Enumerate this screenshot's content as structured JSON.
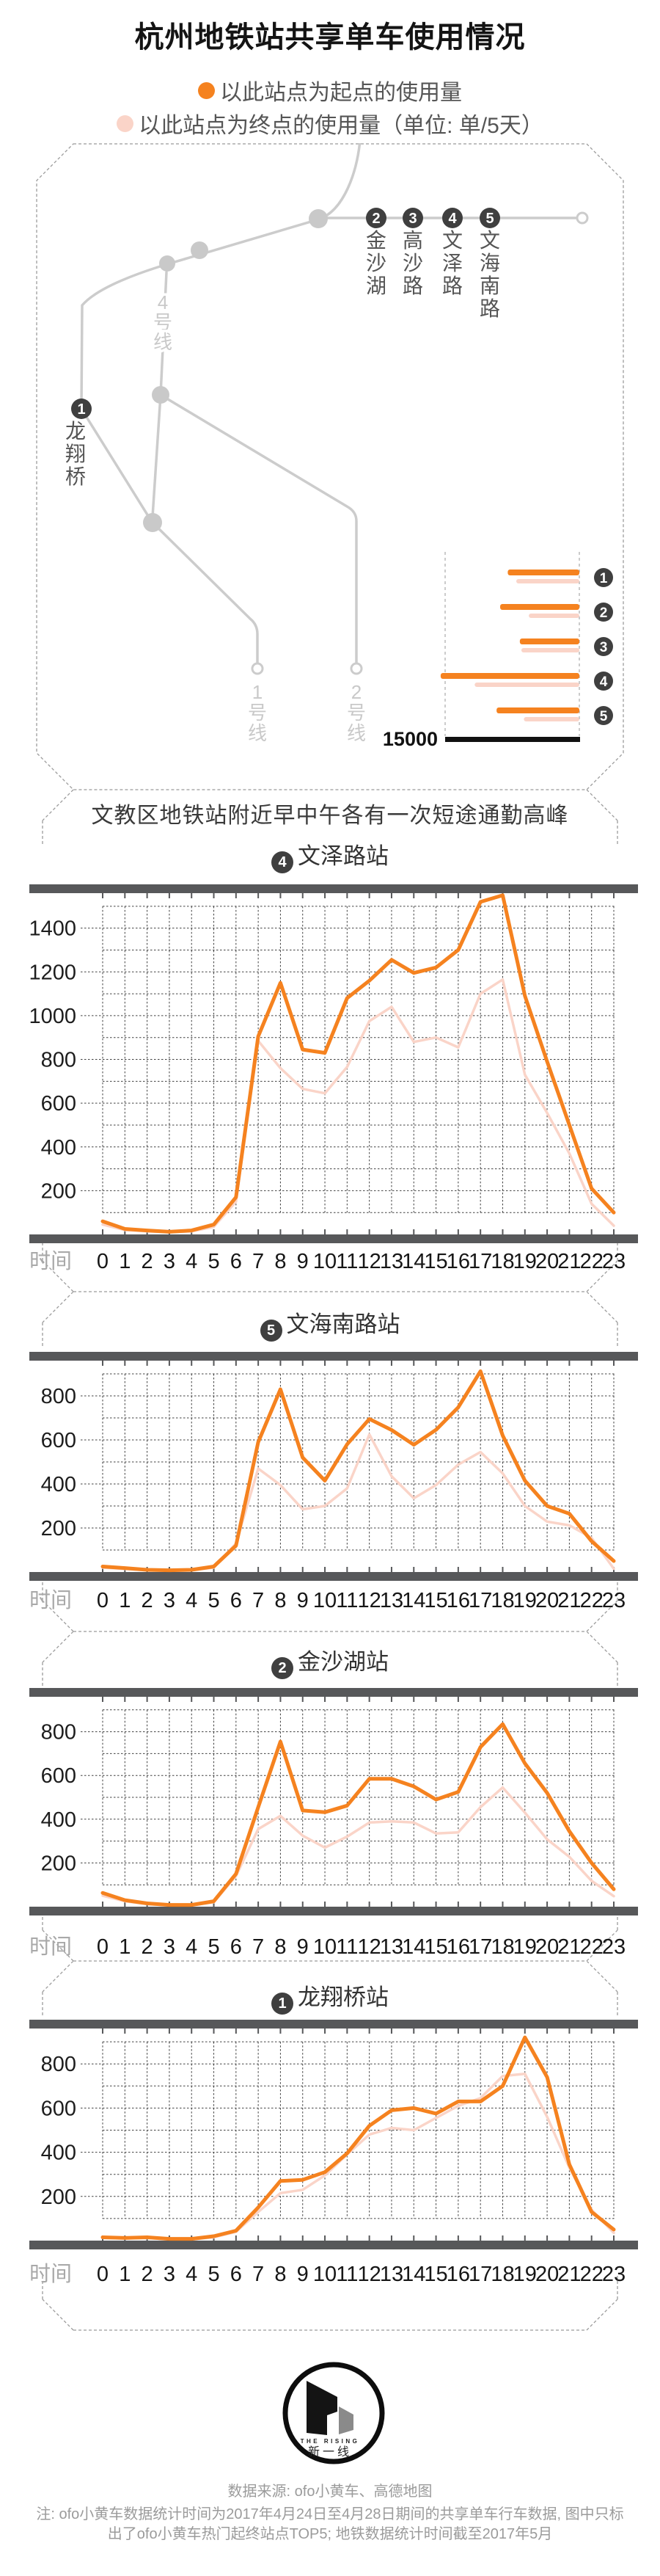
{
  "page": {
    "title": "杭州地铁站共享单车使用情况"
  },
  "legend": {
    "start": {
      "label": "以此站点为起点的使用量",
      "color": "#F5821F"
    },
    "end": {
      "label": "以此站点为终点的使用量（单位: 单/5天）",
      "color": "#FAD4C8"
    }
  },
  "map": {
    "lines": [
      {
        "name": "1号线"
      },
      {
        "name": "2号线"
      },
      {
        "name": "4号线"
      }
    ],
    "stations": [
      {
        "num": "1",
        "name": "龙翔桥"
      },
      {
        "num": "2",
        "name": "金沙湖"
      },
      {
        "num": "3",
        "name": "高沙路"
      },
      {
        "num": "4",
        "name": "文泽路"
      },
      {
        "num": "5",
        "name": "文海南路"
      }
    ]
  },
  "section": {
    "header": "文教区地铁站附近早中午各有一次短途通勤高峰"
  },
  "chart_data": [
    {
      "type": "bar",
      "name": "top5-station-usage",
      "orientation": "horizontal",
      "categories": [
        "1",
        "2",
        "3",
        "4",
        "5"
      ],
      "series": [
        {
          "name": "以此站点为起点的使用量",
          "color": "#F5821F",
          "values": [
            8000,
            8850,
            6650,
            15500,
            9250
          ]
        },
        {
          "name": "以此站点为终点的使用量",
          "color": "#FAD4C8",
          "values": [
            7050,
            5650,
            6480,
            11700,
            6200
          ]
        }
      ],
      "axis_max": 15000,
      "axis_max_label": "15000",
      "unit": "单/5天"
    },
    {
      "type": "line",
      "station_num": "4",
      "title": "文泽路站",
      "x_label": "时间",
      "x_ticks": [
        0,
        1,
        2,
        3,
        4,
        5,
        6,
        7,
        8,
        9,
        10,
        11,
        12,
        13,
        14,
        15,
        16,
        17,
        18,
        19,
        20,
        21,
        22,
        23
      ],
      "y_ticks": [
        200,
        400,
        600,
        800,
        1000,
        1200,
        1400
      ],
      "y_grid_max": 1500,
      "y_axis_max": 1600,
      "series": [
        {
          "name": "起点",
          "color": "#F5821F",
          "values": [
            60,
            25,
            18,
            12,
            18,
            45,
            170,
            905,
            1150,
            845,
            830,
            1080,
            1160,
            1255,
            1195,
            1220,
            1300,
            1520,
            1550,
            1090,
            790,
            500,
            210,
            100
          ]
        },
        {
          "name": "终点",
          "color": "#FAD4C8",
          "values": [
            45,
            20,
            14,
            10,
            14,
            35,
            150,
            885,
            760,
            665,
            645,
            765,
            975,
            1040,
            880,
            900,
            855,
            1100,
            1165,
            730,
            555,
            370,
            140,
            40
          ]
        }
      ]
    },
    {
      "type": "line",
      "station_num": "5",
      "title": "文海南路站",
      "x_label": "时间",
      "x_ticks": [
        0,
        1,
        2,
        3,
        4,
        5,
        6,
        7,
        8,
        9,
        10,
        11,
        12,
        13,
        14,
        15,
        16,
        17,
        18,
        19,
        20,
        21,
        22,
        23
      ],
      "y_ticks": [
        200,
        400,
        600,
        800
      ],
      "y_grid_max": 900,
      "y_axis_max": 1000,
      "series": [
        {
          "name": "起点",
          "color": "#F5821F",
          "values": [
            25,
            18,
            10,
            8,
            10,
            25,
            120,
            590,
            830,
            520,
            415,
            580,
            695,
            645,
            578,
            646,
            748,
            912,
            620,
            415,
            300,
            265,
            140,
            50
          ]
        },
        {
          "name": "终点",
          "color": "#FAD4C8",
          "values": [
            20,
            14,
            8,
            6,
            8,
            20,
            130,
            470,
            395,
            285,
            300,
            380,
            625,
            435,
            335,
            395,
            488,
            545,
            448,
            300,
            229,
            212,
            155,
            15
          ]
        }
      ]
    },
    {
      "type": "line",
      "station_num": "2",
      "title": "金沙湖站",
      "x_label": "时间",
      "x_ticks": [
        0,
        1,
        2,
        3,
        4,
        5,
        6,
        7,
        8,
        9,
        10,
        11,
        12,
        13,
        14,
        15,
        16,
        17,
        18,
        19,
        20,
        21,
        22,
        23
      ],
      "y_ticks": [
        200,
        400,
        600,
        800
      ],
      "y_grid_max": 900,
      "y_axis_max": 1000,
      "series": [
        {
          "name": "起点",
          "color": "#F5821F",
          "values": [
            63,
            30,
            15,
            8,
            8,
            25,
            150,
            455,
            755,
            440,
            432,
            462,
            585,
            585,
            550,
            490,
            525,
            730,
            835,
            655,
            520,
            345,
            200,
            80
          ]
        },
        {
          "name": "终点",
          "color": "#FAD4C8",
          "values": [
            50,
            25,
            12,
            6,
            6,
            20,
            140,
            355,
            415,
            325,
            270,
            320,
            385,
            390,
            385,
            335,
            340,
            455,
            545,
            430,
            308,
            228,
            118,
            48
          ]
        }
      ]
    },
    {
      "type": "line",
      "station_num": "1",
      "title": "龙翔桥站",
      "x_label": "时间",
      "x_ticks": [
        0,
        1,
        2,
        3,
        4,
        5,
        6,
        7,
        8,
        9,
        10,
        11,
        12,
        13,
        14,
        15,
        16,
        17,
        18,
        19,
        20,
        21,
        22,
        23
      ],
      "y_ticks": [
        200,
        400,
        600,
        800
      ],
      "y_grid_max": 900,
      "y_axis_max": 1000,
      "series": [
        {
          "name": "起点",
          "color": "#F5821F",
          "values": [
            15,
            12,
            15,
            8,
            8,
            20,
            45,
            150,
            270,
            275,
            310,
            395,
            520,
            590,
            600,
            575,
            630,
            630,
            700,
            920,
            740,
            345,
            130,
            50
          ]
        },
        {
          "name": "终点",
          "color": "#FAD4C8",
          "values": [
            12,
            10,
            12,
            6,
            6,
            15,
            40,
            130,
            215,
            230,
            295,
            390,
            480,
            510,
            500,
            555,
            610,
            645,
            745,
            755,
            560,
            330,
            140,
            35
          ]
        }
      ]
    }
  ],
  "footer": {
    "logo": {
      "top": "THE RISING",
      "bottom": "新一线"
    },
    "source": "数据来源: ofo小黄车、高德地图",
    "note_line1": "注: ofo小黄车数据统计时间为2017年4月24日至4月28日期间的共享单车行车数据, 图中只标",
    "note_line2": "出了ofo小黄车热门起终站点TOP5; 地铁数据统计时间截至2017年5月"
  }
}
